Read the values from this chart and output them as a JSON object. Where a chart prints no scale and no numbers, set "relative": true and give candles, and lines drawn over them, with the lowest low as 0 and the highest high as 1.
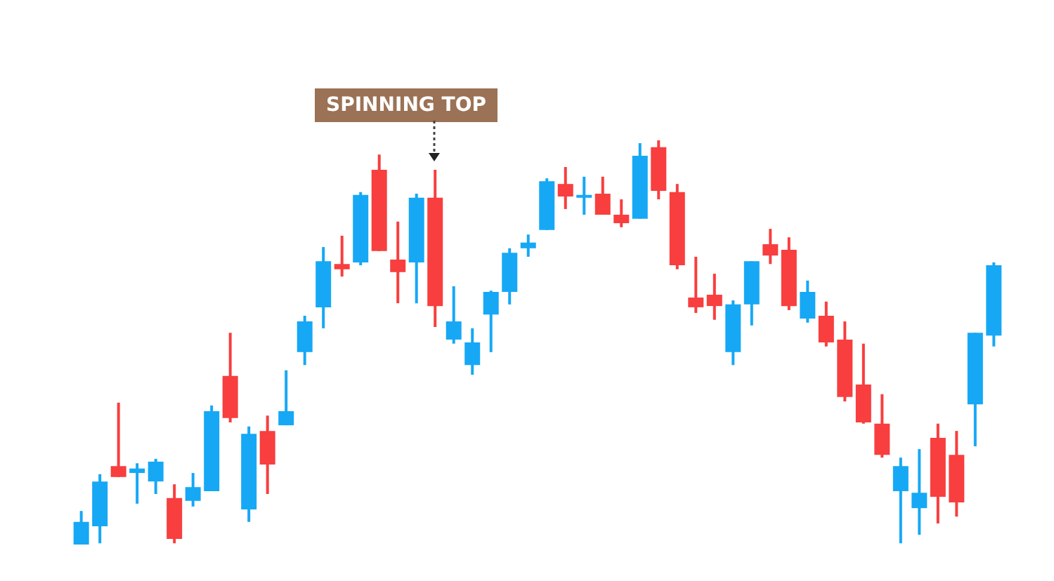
{
  "chart_data": {
    "type": "candlestick",
    "relative": true,
    "categories": [
      null,
      null,
      null,
      null,
      null,
      null,
      null,
      null,
      null,
      null,
      null,
      null,
      null,
      null,
      null,
      null,
      null,
      null,
      null,
      null,
      null,
      null,
      null,
      null,
      null,
      null,
      null,
      null,
      null,
      null,
      null,
      null,
      null,
      null,
      null,
      null,
      null,
      null,
      null,
      null,
      null,
      null,
      null,
      null,
      null,
      null,
      null,
      null,
      null,
      null
    ],
    "ohlc": [
      [
        0,
        0.083,
        0,
        0.056
      ],
      [
        0.045,
        0.174,
        0.003,
        0.156
      ],
      [
        0.194,
        0.351,
        0.167,
        0.167
      ],
      [
        0.177,
        0.201,
        0.101,
        0.188
      ],
      [
        0.156,
        0.212,
        0.125,
        0.205
      ],
      [
        0.115,
        0.149,
        0.003,
        0.014
      ],
      [
        0.108,
        0.177,
        0.094,
        0.142
      ],
      [
        0.132,
        0.344,
        0.132,
        0.33
      ],
      [
        0.417,
        0.524,
        0.302,
        0.313
      ],
      [
        0.087,
        0.292,
        0.056,
        0.274
      ],
      [
        0.281,
        0.319,
        0.125,
        0.198
      ],
      [
        0.295,
        0.431,
        0.295,
        0.33
      ],
      [
        0.476,
        0.566,
        0.444,
        0.552
      ],
      [
        0.587,
        0.736,
        0.535,
        0.701
      ],
      [
        0.694,
        0.764,
        0.663,
        0.681
      ],
      [
        0.698,
        0.872,
        0.691,
        0.865
      ],
      [
        0.927,
        0.965,
        0.726,
        0.726
      ],
      [
        0.705,
        0.799,
        0.597,
        0.674
      ],
      [
        0.698,
        0.868,
        0.597,
        0.858
      ],
      [
        0.858,
        0.927,
        0.538,
        0.59
      ],
      [
        0.507,
        0.639,
        0.497,
        0.552
      ],
      [
        0.444,
        0.535,
        0.42,
        0.5
      ],
      [
        0.569,
        0.628,
        0.476,
        0.625
      ],
      [
        0.625,
        0.733,
        0.594,
        0.722
      ],
      [
        0.733,
        0.767,
        0.712,
        0.747
      ],
      [
        0.778,
        0.906,
        0.778,
        0.899
      ],
      [
        0.892,
        0.934,
        0.83,
        0.861
      ],
      [
        0.858,
        0.91,
        0.816,
        0.865
      ],
      [
        0.868,
        0.91,
        0.816,
        0.816
      ],
      [
        0.816,
        0.854,
        0.785,
        0.795
      ],
      [
        0.806,
        0.993,
        0.806,
        0.962
      ],
      [
        0.983,
        1,
        0.854,
        0.875
      ],
      [
        0.872,
        0.892,
        0.681,
        0.691
      ],
      [
        0.611,
        0.712,
        0.573,
        0.587
      ],
      [
        0.618,
        0.67,
        0.556,
        0.59
      ],
      [
        0.476,
        0.604,
        0.444,
        0.594
      ],
      [
        0.594,
        0.701,
        0.542,
        0.701
      ],
      [
        0.743,
        0.781,
        0.694,
        0.715
      ],
      [
        0.729,
        0.76,
        0.58,
        0.59
      ],
      [
        0.559,
        0.653,
        0.549,
        0.625
      ],
      [
        0.566,
        0.601,
        0.49,
        0.5
      ],
      [
        0.507,
        0.552,
        0.354,
        0.365
      ],
      [
        0.396,
        0.497,
        0.299,
        0.302
      ],
      [
        0.299,
        0.372,
        0.215,
        0.222
      ],
      [
        0.132,
        0.215,
        0.003,
        0.194
      ],
      [
        0.09,
        0.236,
        0.024,
        0.128
      ],
      [
        0.264,
        0.299,
        0.052,
        0.118
      ],
      [
        0.222,
        0.281,
        0.069,
        0.104
      ],
      [
        0.347,
        0.524,
        0.243,
        0.524
      ],
      [
        0.517,
        0.698,
        0.49,
        0.691
      ]
    ],
    "colors": [
      "#16a8f5",
      "#16a8f5",
      "#f83e3e",
      "#16a8f5",
      "#16a8f5",
      "#f83e3e",
      "#16a8f5",
      "#16a8f5",
      "#f83e3e",
      "#16a8f5",
      "#f83e3e",
      "#16a8f5",
      "#16a8f5",
      "#16a8f5",
      "#f83e3e",
      "#16a8f5",
      "#f83e3e",
      "#f83e3e",
      "#16a8f5",
      "#f83e3e",
      "#16a8f5",
      "#16a8f5",
      "#16a8f5",
      "#16a8f5",
      "#16a8f5",
      "#16a8f5",
      "#f83e3e",
      "#16a8f5",
      "#f83e3e",
      "#f83e3e",
      "#16a8f5",
      "#f83e3e",
      "#f83e3e",
      "#f83e3e",
      "#f83e3e",
      "#16a8f5",
      "#16a8f5",
      "#f83e3e",
      "#f83e3e",
      "#16a8f5",
      "#f83e3e",
      "#f83e3e",
      "#f83e3e",
      "#f83e3e",
      "#16a8f5",
      "#16a8f5",
      "#f83e3e",
      "#f83e3e",
      "#16a8f5",
      "#16a8f5"
    ],
    "annotations": [
      "SPINNING TOP"
    ]
  }
}
